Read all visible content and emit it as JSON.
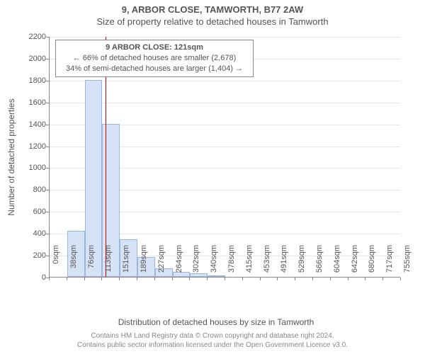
{
  "title": {
    "line1": "9, ARBOR CLOSE, TAMWORTH, B77 2AW",
    "line2": "Size of property relative to detached houses in Tamworth"
  },
  "chart": {
    "type": "histogram",
    "y_axis": {
      "label": "Number of detached properties",
      "min": 0,
      "max": 2200,
      "tick_step": 200,
      "ticks": [
        0,
        200,
        400,
        600,
        800,
        1000,
        1200,
        1400,
        1600,
        1800,
        2000,
        2200
      ]
    },
    "x_axis": {
      "label": "Distribution of detached houses by size in Tamworth",
      "ticks": [
        "0sqm",
        "38sqm",
        "76sqm",
        "113sqm",
        "151sqm",
        "189sqm",
        "227sqm",
        "264sqm",
        "302sqm",
        "340sqm",
        "378sqm",
        "415sqm",
        "453sqm",
        "491sqm",
        "529sqm",
        "566sqm",
        "604sqm",
        "642sqm",
        "680sqm",
        "717sqm",
        "755sqm"
      ]
    },
    "bars": {
      "values": [
        0,
        420,
        1800,
        1400,
        345,
        180,
        75,
        45,
        30,
        15,
        0,
        0,
        0,
        0,
        0,
        0,
        0,
        0,
        0,
        0
      ],
      "fill_color": "#d6e2f5",
      "border_color": "#9bb5df",
      "width_fraction": 1.0
    },
    "marker": {
      "value_sqm": 121,
      "color": "#cc0000"
    },
    "callout": {
      "line1": "9 ARBOR CLOSE: 121sqm",
      "line2": "← 66% of detached houses are smaller (2,678)",
      "line3": "34% of semi-detached houses are larger (1,404) →"
    },
    "grid_color": "#e6e6e6",
    "axis_color": "#888888",
    "background": "#ffffff"
  },
  "footer": {
    "line1": "Contains HM Land Registry data © Crown copyright and database right 2024.",
    "line2": "Contains public sector information licensed under the Open Government Licence v3.0."
  }
}
